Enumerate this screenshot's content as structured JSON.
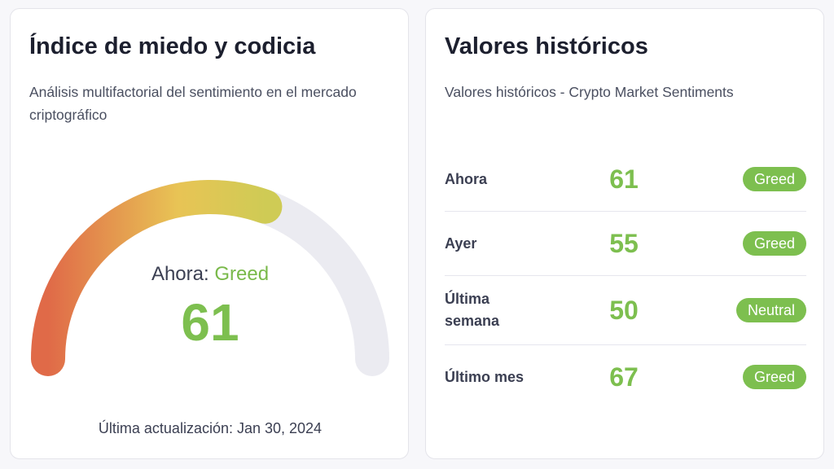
{
  "colors": {
    "accent_green": "#7dbf4f",
    "gauge_start": "#e06a48",
    "gauge_mid": "#e8c455",
    "gauge_end": "#cfcb55",
    "track": "#ebebf1"
  },
  "index_card": {
    "title": "Índice de miedo y codicia",
    "subtitle": "Análisis multifactorial del sentimiento en el mercado criptográfico",
    "now_label": "Ahora:",
    "now_status": "Greed",
    "value": "61",
    "gauge_percent": 61,
    "updated": "Última actualización: Jan 30, 2024"
  },
  "history_card": {
    "title": "Valores históricos",
    "subtitle": "Valores históricos - Crypto Market Sentiments",
    "rows": [
      {
        "label": "Ahora",
        "value": "61",
        "status": "Greed"
      },
      {
        "label": "Ayer",
        "value": "55",
        "status": "Greed"
      },
      {
        "label": "Última semana",
        "value": "50",
        "status": "Neutral"
      },
      {
        "label": "Último mes",
        "value": "67",
        "status": "Greed"
      }
    ]
  }
}
